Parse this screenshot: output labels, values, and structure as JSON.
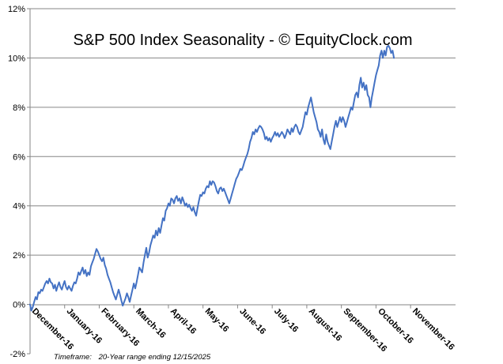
{
  "chart_data": {
    "type": "line",
    "title": "S&P 500 Index Seasonality - © EquityClock.com",
    "xlabel": "",
    "ylabel": "",
    "ylim": [
      -2,
      12
    ],
    "y_ticks": [
      -2,
      0,
      2,
      4,
      6,
      8,
      10,
      12
    ],
    "y_tick_labels": [
      "-2%",
      "0%",
      "2%",
      "4%",
      "6%",
      "8%",
      "10%",
      "12%"
    ],
    "grid": true,
    "x_range": [
      0,
      12.3
    ],
    "months": [
      "December-16",
      "January-16",
      "February-16",
      "March-16",
      "April-16",
      "May-16",
      "June-16",
      "July-16",
      "August-16",
      "September-16",
      "October-16",
      "November-16"
    ],
    "footnote": {
      "label": "Timeframe:",
      "text": "20-Year range ending 12/15/2025"
    },
    "series": [
      {
        "name": "S&P 500 Index Seasonality",
        "color": "#4472C4",
        "points": [
          [
            0.0,
            0.0
          ],
          [
            0.04,
            -0.25
          ],
          [
            0.08,
            -0.1
          ],
          [
            0.12,
            0.1
          ],
          [
            0.16,
            0.3
          ],
          [
            0.2,
            0.2
          ],
          [
            0.24,
            0.5
          ],
          [
            0.28,
            0.45
          ],
          [
            0.32,
            0.6
          ],
          [
            0.36,
            0.55
          ],
          [
            0.4,
            0.7
          ],
          [
            0.44,
            0.85
          ],
          [
            0.48,
            0.95
          ],
          [
            0.52,
            0.85
          ],
          [
            0.56,
            1.05
          ],
          [
            0.6,
            0.9
          ],
          [
            0.64,
            0.85
          ],
          [
            0.68,
            0.65
          ],
          [
            0.72,
            0.8
          ],
          [
            0.76,
            0.55
          ],
          [
            0.8,
            0.75
          ],
          [
            0.84,
            0.9
          ],
          [
            0.88,
            0.7
          ],
          [
            0.92,
            0.6
          ],
          [
            0.96,
            0.8
          ],
          [
            1.0,
            0.95
          ],
          [
            1.04,
            0.7
          ],
          [
            1.08,
            0.6
          ],
          [
            1.12,
            0.75
          ],
          [
            1.16,
            0.65
          ],
          [
            1.2,
            0.55
          ],
          [
            1.24,
            0.75
          ],
          [
            1.28,
            0.9
          ],
          [
            1.32,
            0.85
          ],
          [
            1.36,
            1.05
          ],
          [
            1.4,
            1.3
          ],
          [
            1.44,
            1.2
          ],
          [
            1.48,
            1.35
          ],
          [
            1.52,
            1.5
          ],
          [
            1.56,
            1.25
          ],
          [
            1.6,
            1.4
          ],
          [
            1.64,
            1.15
          ],
          [
            1.68,
            1.3
          ],
          [
            1.72,
            1.2
          ],
          [
            1.76,
            1.55
          ],
          [
            1.8,
            1.7
          ],
          [
            1.84,
            1.85
          ],
          [
            1.88,
            2.05
          ],
          [
            1.92,
            2.25
          ],
          [
            1.96,
            2.15
          ],
          [
            2.0,
            2.0
          ],
          [
            2.04,
            1.85
          ],
          [
            2.08,
            1.75
          ],
          [
            2.12,
            1.9
          ],
          [
            2.16,
            1.6
          ],
          [
            2.2,
            1.45
          ],
          [
            2.24,
            1.2
          ],
          [
            2.28,
            1.05
          ],
          [
            2.32,
            0.9
          ],
          [
            2.36,
            0.7
          ],
          [
            2.4,
            0.5
          ],
          [
            2.44,
            0.35
          ],
          [
            2.48,
            0.2
          ],
          [
            2.52,
            0.4
          ],
          [
            2.56,
            0.6
          ],
          [
            2.6,
            0.4
          ],
          [
            2.64,
            0.15
          ],
          [
            2.68,
            -0.05
          ],
          [
            2.72,
            0.1
          ],
          [
            2.76,
            0.25
          ],
          [
            2.8,
            0.45
          ],
          [
            2.84,
            0.3
          ],
          [
            2.88,
            0.1
          ],
          [
            2.92,
            0.35
          ],
          [
            2.96,
            0.6
          ],
          [
            3.0,
            0.85
          ],
          [
            3.04,
            0.65
          ],
          [
            3.08,
            0.9
          ],
          [
            3.12,
            1.2
          ],
          [
            3.16,
            1.5
          ],
          [
            3.2,
            1.4
          ],
          [
            3.24,
            1.3
          ],
          [
            3.28,
            1.7
          ],
          [
            3.32,
            2.0
          ],
          [
            3.36,
            2.3
          ],
          [
            3.4,
            1.9
          ],
          [
            3.44,
            2.1
          ],
          [
            3.48,
            2.4
          ],
          [
            3.52,
            2.6
          ],
          [
            3.56,
            2.8
          ],
          [
            3.6,
            2.7
          ],
          [
            3.64,
            3.0
          ],
          [
            3.68,
            2.8
          ],
          [
            3.72,
            3.1
          ],
          [
            3.76,
            2.9
          ],
          [
            3.8,
            3.2
          ],
          [
            3.84,
            3.5
          ],
          [
            3.88,
            3.4
          ],
          [
            3.92,
            3.8
          ],
          [
            3.96,
            3.9
          ],
          [
            4.0,
            4.1
          ],
          [
            4.04,
            4.0
          ],
          [
            4.08,
            4.3
          ],
          [
            4.12,
            4.25
          ],
          [
            4.16,
            4.1
          ],
          [
            4.2,
            4.3
          ],
          [
            4.24,
            4.4
          ],
          [
            4.28,
            4.2
          ],
          [
            4.32,
            4.3
          ],
          [
            4.36,
            4.1
          ],
          [
            4.4,
            4.35
          ],
          [
            4.44,
            4.2
          ],
          [
            4.48,
            4.0
          ],
          [
            4.52,
            4.1
          ],
          [
            4.56,
            3.95
          ],
          [
            4.6,
            4.05
          ],
          [
            4.64,
            3.9
          ],
          [
            4.68,
            3.8
          ],
          [
            4.72,
            3.95
          ],
          [
            4.76,
            3.75
          ],
          [
            4.8,
            3.6
          ],
          [
            4.84,
            3.9
          ],
          [
            4.88,
            4.2
          ],
          [
            4.92,
            4.45
          ],
          [
            4.96,
            4.4
          ],
          [
            5.0,
            4.55
          ],
          [
            5.04,
            4.5
          ],
          [
            5.08,
            4.7
          ],
          [
            5.12,
            4.8
          ],
          [
            5.16,
            4.75
          ],
          [
            5.2,
            5.0
          ],
          [
            5.24,
            4.85
          ],
          [
            5.28,
            5.0
          ],
          [
            5.32,
            4.95
          ],
          [
            5.36,
            4.8
          ],
          [
            5.4,
            4.6
          ],
          [
            5.44,
            4.5
          ],
          [
            5.48,
            4.7
          ],
          [
            5.52,
            4.75
          ],
          [
            5.56,
            4.6
          ],
          [
            5.6,
            4.7
          ],
          [
            5.64,
            4.55
          ],
          [
            5.68,
            4.4
          ],
          [
            5.72,
            4.25
          ],
          [
            5.76,
            4.1
          ],
          [
            5.8,
            4.3
          ],
          [
            5.84,
            4.5
          ],
          [
            5.88,
            4.7
          ],
          [
            5.92,
            4.9
          ],
          [
            5.96,
            5.1
          ],
          [
            6.0,
            5.2
          ],
          [
            6.04,
            5.35
          ],
          [
            6.08,
            5.5
          ],
          [
            6.12,
            5.45
          ],
          [
            6.16,
            5.6
          ],
          [
            6.2,
            5.8
          ],
          [
            6.24,
            5.95
          ],
          [
            6.28,
            6.1
          ],
          [
            6.32,
            6.3
          ],
          [
            6.36,
            6.6
          ],
          [
            6.4,
            6.75
          ],
          [
            6.44,
            7.0
          ],
          [
            6.48,
            6.9
          ],
          [
            6.52,
            7.1
          ],
          [
            6.56,
            7.0
          ],
          [
            6.6,
            7.15
          ],
          [
            6.64,
            7.25
          ],
          [
            6.68,
            7.2
          ],
          [
            6.72,
            7.1
          ],
          [
            6.76,
            6.95
          ],
          [
            6.8,
            6.7
          ],
          [
            6.84,
            6.8
          ],
          [
            6.88,
            6.65
          ],
          [
            6.92,
            6.75
          ],
          [
            6.96,
            6.6
          ],
          [
            7.0,
            6.75
          ],
          [
            7.04,
            6.85
          ],
          [
            7.08,
            7.0
          ],
          [
            7.12,
            6.85
          ],
          [
            7.16,
            6.95
          ],
          [
            7.2,
            6.8
          ],
          [
            7.24,
            6.9
          ],
          [
            7.28,
            7.0
          ],
          [
            7.32,
            6.9
          ],
          [
            7.36,
            6.75
          ],
          [
            7.4,
            6.9
          ],
          [
            7.44,
            7.1
          ],
          [
            7.48,
            7.0
          ],
          [
            7.52,
            6.9
          ],
          [
            7.56,
            7.15
          ],
          [
            7.6,
            7.0
          ],
          [
            7.64,
            7.2
          ],
          [
            7.68,
            7.3
          ],
          [
            7.72,
            7.2
          ],
          [
            7.76,
            7.0
          ],
          [
            7.8,
            6.9
          ],
          [
            7.84,
            7.05
          ],
          [
            7.88,
            7.2
          ],
          [
            7.92,
            7.5
          ],
          [
            7.96,
            7.8
          ],
          [
            8.0,
            7.7
          ],
          [
            8.04,
            8.0
          ],
          [
            8.08,
            8.2
          ],
          [
            8.12,
            8.4
          ],
          [
            8.16,
            8.1
          ],
          [
            8.2,
            7.8
          ],
          [
            8.24,
            7.6
          ],
          [
            8.28,
            7.4
          ],
          [
            8.32,
            7.1
          ],
          [
            8.36,
            7.0
          ],
          [
            8.4,
            6.8
          ],
          [
            8.44,
            7.1
          ],
          [
            8.48,
            6.7
          ],
          [
            8.52,
            6.5
          ],
          [
            8.56,
            6.9
          ],
          [
            8.6,
            6.6
          ],
          [
            8.64,
            6.45
          ],
          [
            8.68,
            6.3
          ],
          [
            8.72,
            6.6
          ],
          [
            8.76,
            6.9
          ],
          [
            8.8,
            7.2
          ],
          [
            8.84,
            7.45
          ],
          [
            8.88,
            7.2
          ],
          [
            8.92,
            7.4
          ],
          [
            8.96,
            7.6
          ],
          [
            9.0,
            7.4
          ],
          [
            9.04,
            7.6
          ],
          [
            9.08,
            7.45
          ],
          [
            9.12,
            7.2
          ],
          [
            9.16,
            7.4
          ],
          [
            9.2,
            7.6
          ],
          [
            9.24,
            7.8
          ],
          [
            9.28,
            8.0
          ],
          [
            9.32,
            7.9
          ],
          [
            9.36,
            8.2
          ],
          [
            9.4,
            8.5
          ],
          [
            9.44,
            8.6
          ],
          [
            9.48,
            8.4
          ],
          [
            9.52,
            8.9
          ],
          [
            9.56,
            9.2
          ],
          [
            9.6,
            8.8
          ],
          [
            9.64,
            9.0
          ],
          [
            9.68,
            8.7
          ],
          [
            9.72,
            8.9
          ],
          [
            9.76,
            8.5
          ],
          [
            9.8,
            8.4
          ],
          [
            9.84,
            8.0
          ],
          [
            9.88,
            8.4
          ],
          [
            9.92,
            8.7
          ],
          [
            9.96,
            9.0
          ],
          [
            10.0,
            9.3
          ],
          [
            10.04,
            9.5
          ],
          [
            10.08,
            9.7
          ],
          [
            10.12,
            10.1
          ],
          [
            10.16,
            10.3
          ],
          [
            10.2,
            10.0
          ],
          [
            10.24,
            10.3
          ],
          [
            10.28,
            10.1
          ],
          [
            10.32,
            10.45
          ],
          [
            10.36,
            10.5
          ],
          [
            10.4,
            10.4
          ],
          [
            10.44,
            10.2
          ],
          [
            10.48,
            10.3
          ],
          [
            10.52,
            10.0
          ]
        ]
      }
    ]
  }
}
